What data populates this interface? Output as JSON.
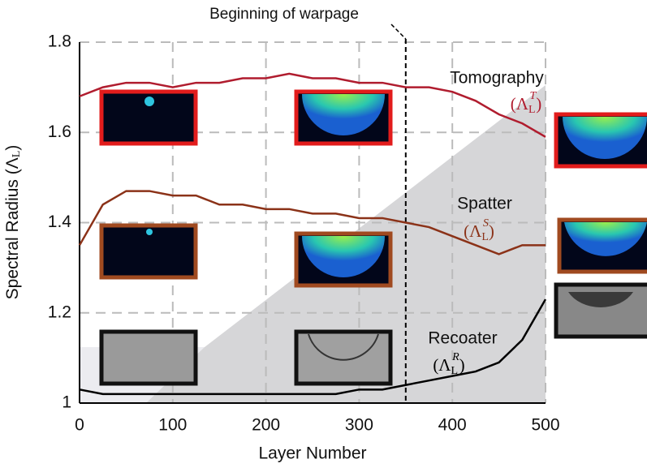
{
  "chart_data": {
    "type": "line",
    "ylabel": [
      "Spectral Radius (Λ",
      "L",
      ")"
    ],
    "xlabel": "Layer Number",
    "annotation": "Beginning  of warpage",
    "annotation_x": 350,
    "x": [
      0,
      25,
      50,
      75,
      100,
      125,
      150,
      175,
      200,
      225,
      250,
      275,
      300,
      325,
      350,
      375,
      400,
      425,
      450,
      475,
      500
    ],
    "series": [
      {
        "name": "Tomography",
        "color": "#b01c2e",
        "math": [
          "(Λ",
          "L",
          "T",
          ")"
        ],
        "values": [
          1.68,
          1.7,
          1.71,
          1.71,
          1.7,
          1.71,
          1.71,
          1.72,
          1.72,
          1.73,
          1.72,
          1.72,
          1.71,
          1.71,
          1.7,
          1.7,
          1.69,
          1.67,
          1.64,
          1.62,
          1.59
        ]
      },
      {
        "name": "Spatter",
        "color": "#8b3218",
        "math": [
          "(Λ",
          "L",
          "S",
          ")"
        ],
        "values": [
          1.35,
          1.44,
          1.47,
          1.47,
          1.46,
          1.46,
          1.44,
          1.44,
          1.43,
          1.43,
          1.42,
          1.42,
          1.41,
          1.41,
          1.4,
          1.39,
          1.37,
          1.35,
          1.33,
          1.35,
          1.35
        ]
      },
      {
        "name": "Recoater",
        "color": "#000000",
        "math": [
          "(Λ",
          "L",
          "R",
          ")"
        ],
        "values": [
          1.03,
          1.02,
          1.02,
          1.02,
          1.02,
          1.02,
          1.02,
          1.02,
          1.02,
          1.02,
          1.02,
          1.02,
          1.03,
          1.03,
          1.04,
          1.05,
          1.06,
          1.07,
          1.09,
          1.14,
          1.23
        ]
      }
    ],
    "xlim": [
      0,
      500
    ],
    "xticks": [
      0,
      100,
      200,
      300,
      400,
      500
    ],
    "ylim": [
      1,
      1.8
    ],
    "yticks": [
      1,
      1.2,
      1.4,
      1.6,
      1.8
    ],
    "grid": true
  }
}
